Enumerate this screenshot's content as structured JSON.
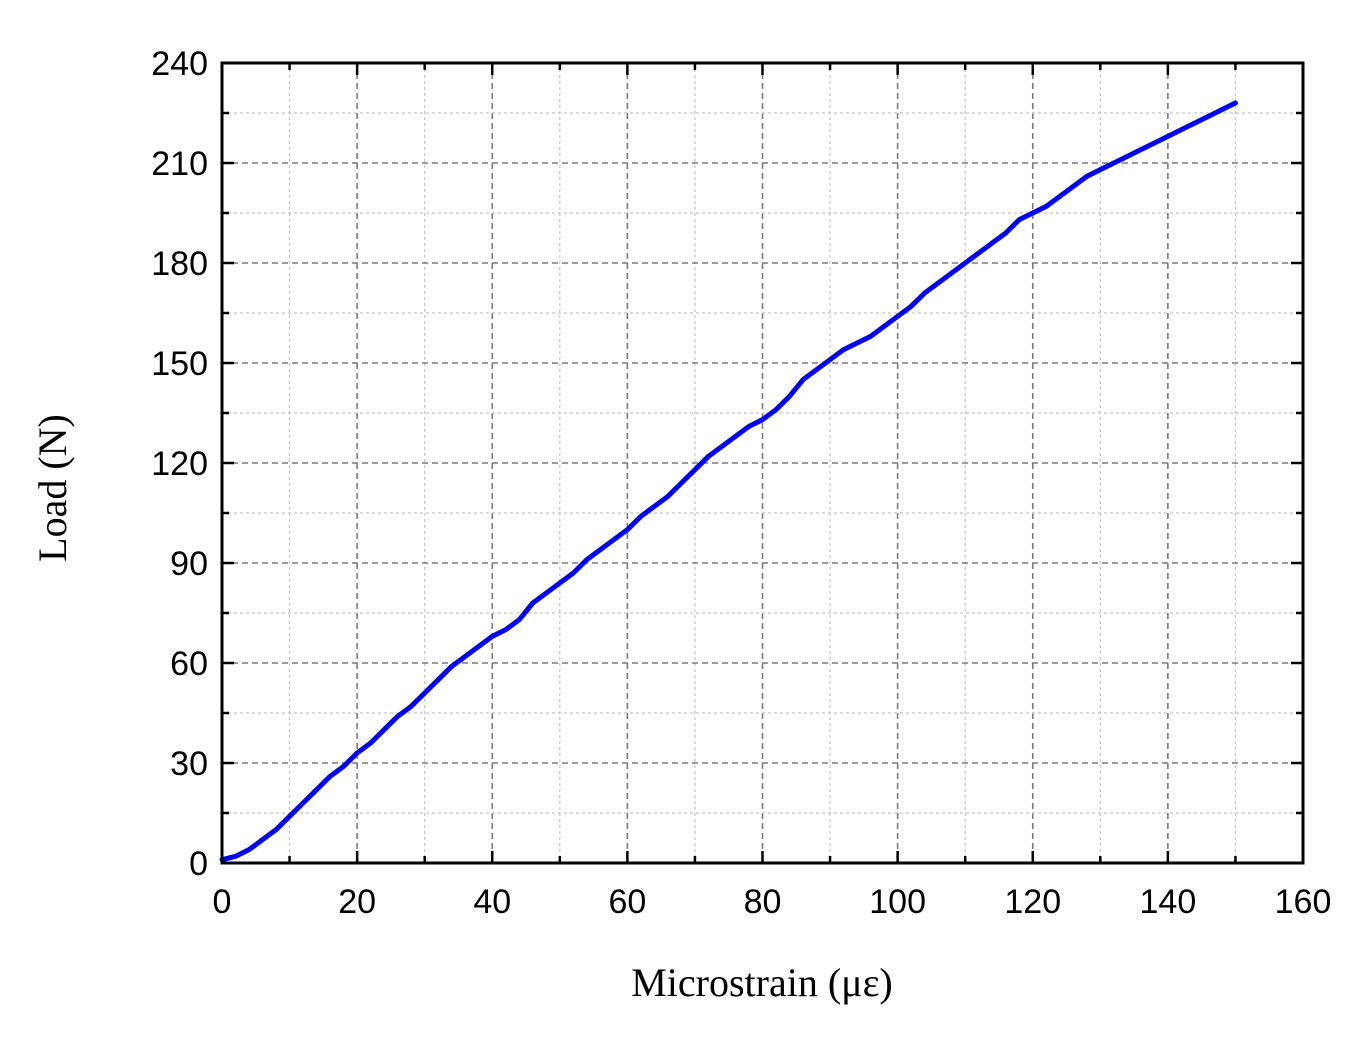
{
  "chart_data": {
    "type": "line",
    "xlabel": "Microstrain (με)",
    "ylabel": "Load (N)",
    "xlim": [
      0,
      160
    ],
    "ylim": [
      0,
      240
    ],
    "x_ticks": [
      0,
      20,
      40,
      60,
      80,
      100,
      120,
      140,
      160
    ],
    "y_ticks": [
      0,
      30,
      60,
      90,
      120,
      150,
      180,
      210,
      240
    ],
    "x_minor_step": 10,
    "y_minor_step": 15,
    "grid": true,
    "legend": "none",
    "series": [
      {
        "color": "#0000ff",
        "x": [
          0,
          2,
          4,
          6,
          8,
          10,
          12,
          14,
          16,
          18,
          20,
          22,
          24,
          26,
          28,
          30,
          32,
          34,
          36,
          38,
          40,
          42,
          44,
          46,
          48,
          50,
          52,
          54,
          56,
          58,
          60,
          62,
          64,
          66,
          68,
          70,
          72,
          74,
          76,
          78,
          80,
          82,
          84,
          86,
          88,
          90,
          92,
          94,
          96,
          98,
          100,
          102,
          104,
          106,
          108,
          110,
          112,
          114,
          116,
          118,
          120,
          122,
          124,
          126,
          128,
          130,
          132,
          134,
          136,
          138,
          140,
          142,
          144,
          146,
          148,
          150
        ],
        "y": [
          1,
          2,
          4,
          7,
          10,
          14,
          18,
          22,
          26,
          29,
          33,
          36,
          40,
          44,
          47,
          51,
          55,
          59,
          62,
          65,
          68,
          70,
          73,
          78,
          81,
          84,
          87,
          91,
          94,
          97,
          100,
          104,
          107,
          110,
          114,
          118,
          122,
          125,
          128,
          131,
          133,
          136,
          140,
          145,
          148,
          151,
          154,
          156,
          158,
          161,
          164,
          167,
          171,
          174,
          177,
          180,
          183,
          186,
          189,
          193,
          195,
          197,
          200,
          203,
          206,
          208,
          210,
          212,
          214,
          216,
          218,
          220,
          222,
          224,
          226,
          228
        ]
      }
    ]
  }
}
